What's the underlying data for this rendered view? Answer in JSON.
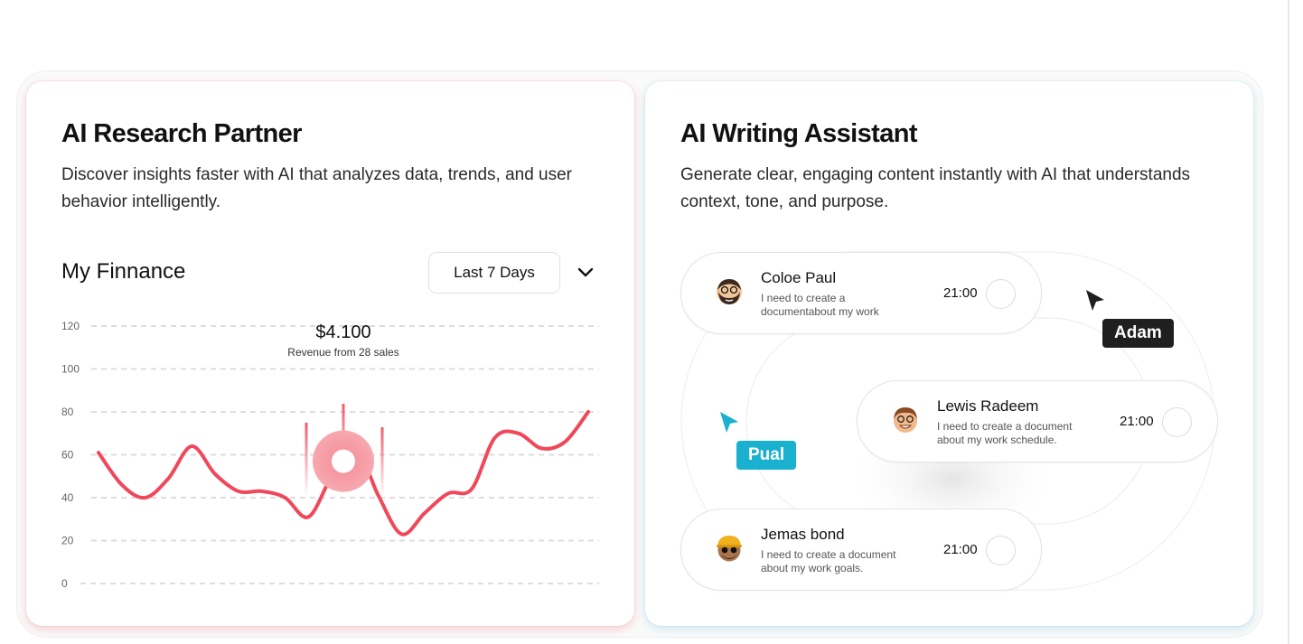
{
  "research": {
    "title": "AI Research Partner",
    "description": "Discover insights faster with AI that analyzes data, trends, and user behavior intelligently.",
    "finance_title": "My Finnance",
    "range_label": "Last 7 Days",
    "chevron_icon": "chevron-down-icon"
  },
  "chart_data": {
    "type": "line",
    "y_ticks": [
      "120",
      "100",
      "80",
      "60",
      "40",
      "20",
      "0"
    ],
    "ylim": [
      0,
      120
    ],
    "grid": true,
    "series": [
      {
        "values": [
          61,
          46,
          40,
          49,
          64,
          51,
          43,
          43,
          40,
          31,
          50,
          64,
          41,
          23,
          33,
          42,
          44,
          68,
          70,
          63,
          66,
          80
        ]
      }
    ],
    "highlight": {
      "value_label": "$4.100",
      "sub_label": "Revenue from 28 sales"
    },
    "line_color": "#f0485a"
  },
  "writing": {
    "title": "AI Writing Assistant",
    "description": "Generate clear, engaging content instantly with AI that understands context, tone, and purpose.",
    "messages": [
      {
        "name": "Coloe Paul",
        "text": "I need to create a documentabout my work",
        "time": "21:00",
        "avatar": "bearded-man-avatar"
      },
      {
        "name": "Lewis Radeem",
        "text": "I need to create a document about my work schedule.",
        "time": "21:00",
        "avatar": "smiling-man-avatar"
      },
      {
        "name": "Jemas bond",
        "text": "I need to create a document about my work goals.",
        "time": "21:00",
        "avatar": "cap-man-avatar"
      }
    ],
    "cursors": [
      {
        "label": "Adam",
        "color": "#1f1f1f",
        "icon": "cursor-pointer-icon"
      },
      {
        "label": "Pual",
        "color": "#1ab0cf",
        "icon": "cursor-pointer-icon"
      }
    ]
  }
}
